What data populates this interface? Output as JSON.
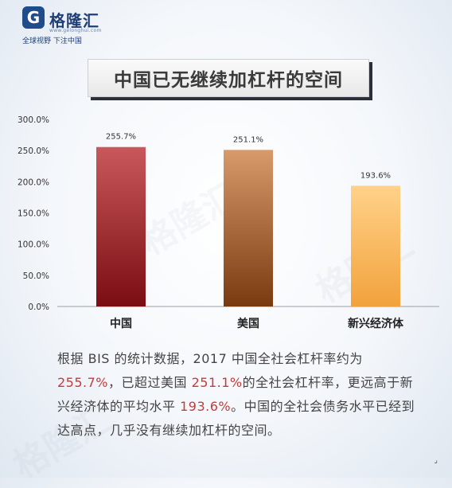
{
  "logo": {
    "mark": "G",
    "name": "格隆汇",
    "url": "www.gelonghui.com",
    "tagline": "全球视野 下注中国"
  },
  "watermark_text": "格隆汇",
  "title": "中国已无继续加杠杆的空间",
  "caption": {
    "p1": "根据 BIS 的统计数据，2017 中国全社会杠杆率约为 ",
    "h1": "255.7%",
    "p2": "，已超过美国 ",
    "h2": "251.1%",
    "p3": "的全社会杠杆率，更远高于新兴经济体的平均水平 ",
    "h3": "193.6%",
    "p4": "。中国的全社会债务水平已经到达高点，几乎没有继续加杠杆的空间。"
  },
  "chart_data": {
    "type": "bar",
    "title": "中国已无继续加杠杆的空间",
    "categories": [
      "中国",
      "美国",
      "新兴经济体"
    ],
    "values": [
      255.7,
      251.1,
      193.6
    ],
    "value_labels": [
      "255.7%",
      "251.1%",
      "193.6%"
    ],
    "yticks": [
      "0.0%",
      "50.0%",
      "100.0%",
      "150.0%",
      "200.0%",
      "250.0%",
      "300.0%"
    ],
    "ylim": [
      0,
      300
    ],
    "grid": false,
    "legend": "none",
    "bar_gradients": [
      [
        "#c8585b",
        "#7a0d12"
      ],
      [
        "#d79a6a",
        "#7a3a10"
      ],
      [
        "#ffd28a",
        "#f2a23c"
      ]
    ]
  }
}
